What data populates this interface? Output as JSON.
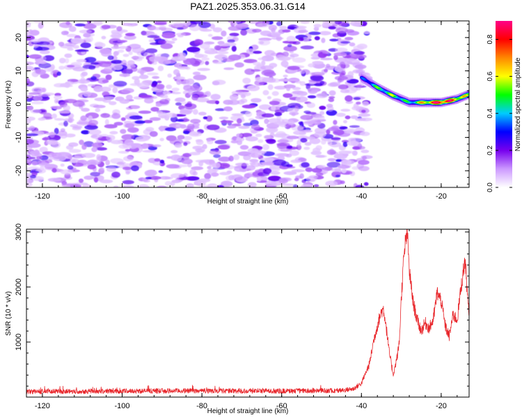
{
  "title": "PAZ1.2025.353.06.31.G14",
  "chart_data": [
    {
      "type": "heatmap",
      "name": "spectrogram",
      "xlabel": "Height of straight line (km)",
      "ylabel": "Frequency (Hz)",
      "xlim": [
        -124,
        -13
      ],
      "ylim": [
        -25,
        25
      ],
      "xticks": [
        -120,
        -100,
        -80,
        -60,
        -40,
        -20
      ],
      "yticks": [
        -20,
        -10,
        0,
        10,
        20
      ],
      "noise_region": {
        "x": [
          -124,
          -40
        ],
        "y": [
          -25,
          25
        ],
        "amplitude_range": [
          0.05,
          0.25
        ]
      },
      "signal_ridge": {
        "x": [
          -40,
          -36,
          -32,
          -28,
          -24,
          -20,
          -16,
          -13
        ],
        "frequency": [
          8,
          5,
          2.5,
          0.5,
          0.5,
          0.5,
          1.5,
          3
        ],
        "peak_amplitude": [
          0.3,
          0.5,
          0.55,
          0.45,
          0.7,
          0.95,
          0.75,
          0.55
        ]
      },
      "colorbar": {
        "label": "Normalized spectral amplitude",
        "range": [
          0.0,
          0.9
        ],
        "ticks": [
          0.0,
          0.2,
          0.4,
          0.6,
          0.8
        ],
        "colormap": [
          "#ffffff",
          "#cc99ff",
          "#7700ee",
          "#0000ff",
          "#00ccff",
          "#00ff00",
          "#ffff00",
          "#ff8800",
          "#ff0000",
          "#ff0088"
        ]
      }
    },
    {
      "type": "line",
      "name": "snr",
      "xlabel": "Height of straight line (km)",
      "ylabel": "SNR (10 * v/v)",
      "xlim": [
        -124,
        -13
      ],
      "ylim": [
        0,
        3050
      ],
      "xticks": [
        -120,
        -100,
        -80,
        -60,
        -40,
        -20
      ],
      "yticks": [
        1000,
        2000,
        3000
      ],
      "color": "#e8262b",
      "series": [
        {
          "name": "SNR",
          "x": [
            -124,
            -100,
            -80,
            -60,
            -45,
            -42,
            -40,
            -38,
            -37,
            -36,
            -35,
            -34.5,
            -34,
            -33,
            -32,
            -31,
            -30.5,
            -30,
            -29.5,
            -29,
            -28.5,
            -28,
            -27,
            -26,
            -25,
            -24,
            -23,
            -22,
            -21,
            -20,
            -19,
            -18,
            -17,
            -16,
            -15,
            -14,
            -13
          ],
          "y": [
            100,
            110,
            115,
            110,
            120,
            150,
            250,
            600,
            1000,
            1300,
            1550,
            1600,
            1400,
            800,
            400,
            750,
            1000,
            1800,
            2400,
            2800,
            3000,
            2300,
            1700,
            1400,
            1200,
            1350,
            1250,
            1400,
            1900,
            1750,
            1300,
            1100,
            1500,
            1400,
            2000,
            2500,
            1400
          ],
          "noise_amplitude_above_-45km": 160,
          "baseline_below_-45km": 100
        }
      ]
    }
  ]
}
